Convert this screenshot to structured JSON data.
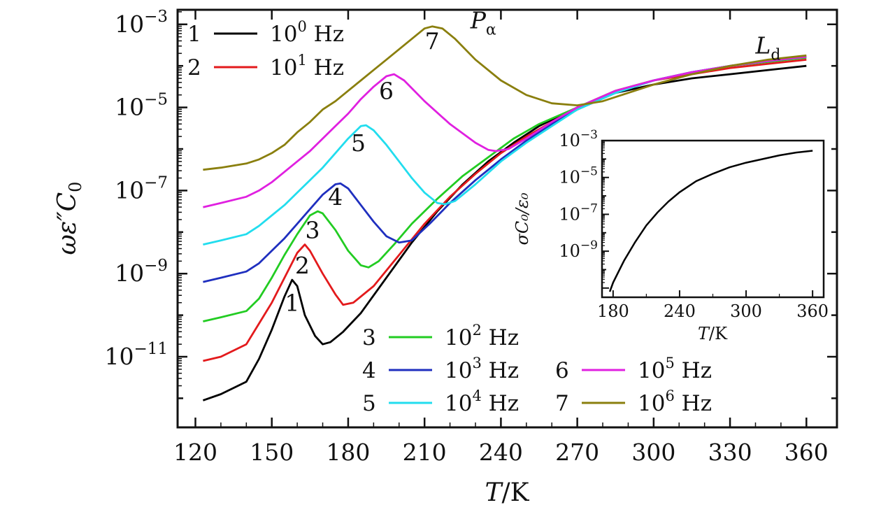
{
  "chart_data": {
    "type": "line",
    "title": "",
    "xlabel": {
      "var": "T",
      "unit": "/K"
    },
    "ylabel": {
      "var": "ωε″",
      "sub": "C",
      "subscript": "0"
    },
    "x_ticks": [
      120,
      150,
      180,
      210,
      240,
      270,
      300,
      330,
      360
    ],
    "xlim": [
      113,
      372
    ],
    "y_log": true,
    "ylim_exp": [
      -12.7,
      -2.65
    ],
    "y_ticks": [
      {
        "base": "10",
        "exp": "−3",
        "value": -3
      },
      {
        "base": "10",
        "exp": "−5",
        "value": -5
      },
      {
        "base": "10",
        "exp": "−7",
        "value": -7
      },
      {
        "base": "10",
        "exp": "−9",
        "value": -9
      },
      {
        "base": "10",
        "exp": "−11",
        "value": -11
      }
    ],
    "series": [
      {
        "id": "1",
        "name": "10^0 Hz",
        "freq_base": "10",
        "freq_exp": "0",
        "unit": "Hz",
        "color": "#000000",
        "points": [
          [
            123,
            -12.05
          ],
          [
            130,
            -11.9
          ],
          [
            140,
            -11.6
          ],
          [
            145,
            -11.05
          ],
          [
            150,
            -10.35
          ],
          [
            155,
            -9.55
          ],
          [
            158,
            -9.15
          ],
          [
            160,
            -9.3
          ],
          [
            163,
            -10.0
          ],
          [
            167,
            -10.5
          ],
          [
            170,
            -10.7
          ],
          [
            173,
            -10.65
          ],
          [
            178,
            -10.4
          ],
          [
            185,
            -9.95
          ],
          [
            195,
            -9.1
          ],
          [
            205,
            -8.25
          ],
          [
            215,
            -7.5
          ],
          [
            225,
            -6.85
          ],
          [
            235,
            -6.3
          ],
          [
            245,
            -5.85
          ],
          [
            255,
            -5.45
          ],
          [
            270,
            -5.0
          ],
          [
            285,
            -4.65
          ],
          [
            300,
            -4.45
          ],
          [
            315,
            -4.3
          ],
          [
            330,
            -4.2
          ],
          [
            345,
            -4.1
          ],
          [
            360,
            -4.0
          ]
        ]
      },
      {
        "id": "2",
        "name": "10^1 Hz",
        "freq_base": "10",
        "freq_exp": "1",
        "unit": "Hz",
        "color": "#e31a1c",
        "points": [
          [
            123,
            -11.1
          ],
          [
            130,
            -11.0
          ],
          [
            140,
            -10.7
          ],
          [
            145,
            -10.2
          ],
          [
            150,
            -9.7
          ],
          [
            155,
            -9.1
          ],
          [
            160,
            -8.5
          ],
          [
            163,
            -8.3
          ],
          [
            165,
            -8.45
          ],
          [
            170,
            -9.0
          ],
          [
            175,
            -9.5
          ],
          [
            178,
            -9.75
          ],
          [
            182,
            -9.7
          ],
          [
            190,
            -9.3
          ],
          [
            200,
            -8.55
          ],
          [
            210,
            -7.8
          ],
          [
            220,
            -7.15
          ],
          [
            230,
            -6.6
          ],
          [
            240,
            -6.1
          ],
          [
            250,
            -5.7
          ],
          [
            260,
            -5.35
          ],
          [
            270,
            -5.0
          ],
          [
            285,
            -4.6
          ],
          [
            300,
            -4.35
          ],
          [
            315,
            -4.2
          ],
          [
            330,
            -4.05
          ],
          [
            345,
            -3.95
          ],
          [
            360,
            -3.85
          ]
        ]
      },
      {
        "id": "3",
        "name": "10^2 Hz",
        "freq_base": "10",
        "freq_exp": "2",
        "unit": "Hz",
        "color": "#22cc22",
        "points": [
          [
            123,
            -10.15
          ],
          [
            130,
            -10.05
          ],
          [
            140,
            -9.9
          ],
          [
            145,
            -9.6
          ],
          [
            150,
            -9.1
          ],
          [
            155,
            -8.55
          ],
          [
            160,
            -8.05
          ],
          [
            165,
            -7.6
          ],
          [
            168,
            -7.5
          ],
          [
            170,
            -7.55
          ],
          [
            175,
            -7.95
          ],
          [
            180,
            -8.45
          ],
          [
            185,
            -8.8
          ],
          [
            188,
            -8.85
          ],
          [
            192,
            -8.7
          ],
          [
            198,
            -8.3
          ],
          [
            205,
            -7.8
          ],
          [
            215,
            -7.2
          ],
          [
            225,
            -6.65
          ],
          [
            235,
            -6.2
          ],
          [
            245,
            -5.75
          ],
          [
            255,
            -5.4
          ],
          [
            270,
            -5.0
          ],
          [
            285,
            -4.6
          ],
          [
            300,
            -4.35
          ],
          [
            315,
            -4.15
          ],
          [
            330,
            -4.0
          ],
          [
            345,
            -3.9
          ],
          [
            360,
            -3.8
          ]
        ]
      },
      {
        "id": "4",
        "name": "10^3 Hz",
        "freq_base": "10",
        "freq_exp": "3",
        "unit": "Hz",
        "color": "#1f2fbf",
        "points": [
          [
            123,
            -9.2
          ],
          [
            130,
            -9.1
          ],
          [
            140,
            -8.95
          ],
          [
            145,
            -8.75
          ],
          [
            150,
            -8.45
          ],
          [
            155,
            -8.15
          ],
          [
            160,
            -7.8
          ],
          [
            165,
            -7.45
          ],
          [
            170,
            -7.1
          ],
          [
            175,
            -6.85
          ],
          [
            177,
            -6.83
          ],
          [
            180,
            -6.95
          ],
          [
            185,
            -7.35
          ],
          [
            190,
            -7.75
          ],
          [
            195,
            -8.1
          ],
          [
            200,
            -8.25
          ],
          [
            205,
            -8.2
          ],
          [
            212,
            -7.8
          ],
          [
            220,
            -7.3
          ],
          [
            230,
            -6.75
          ],
          [
            240,
            -6.25
          ],
          [
            250,
            -5.8
          ],
          [
            260,
            -5.4
          ],
          [
            270,
            -5.05
          ],
          [
            285,
            -4.65
          ],
          [
            300,
            -4.35
          ],
          [
            315,
            -4.15
          ],
          [
            330,
            -4.0
          ],
          [
            345,
            -3.88
          ],
          [
            360,
            -3.78
          ]
        ]
      },
      {
        "id": "5",
        "name": "10^4 Hz",
        "freq_base": "10",
        "freq_exp": "4",
        "unit": "Hz",
        "color": "#22ddee",
        "points": [
          [
            123,
            -8.3
          ],
          [
            130,
            -8.2
          ],
          [
            140,
            -8.05
          ],
          [
            145,
            -7.85
          ],
          [
            150,
            -7.6
          ],
          [
            155,
            -7.35
          ],
          [
            160,
            -7.05
          ],
          [
            165,
            -6.75
          ],
          [
            170,
            -6.45
          ],
          [
            175,
            -6.1
          ],
          [
            180,
            -5.75
          ],
          [
            185,
            -5.45
          ],
          [
            187,
            -5.43
          ],
          [
            190,
            -5.55
          ],
          [
            195,
            -5.9
          ],
          [
            200,
            -6.3
          ],
          [
            205,
            -6.7
          ],
          [
            210,
            -7.05
          ],
          [
            215,
            -7.3
          ],
          [
            218,
            -7.33
          ],
          [
            222,
            -7.25
          ],
          [
            230,
            -6.85
          ],
          [
            240,
            -6.3
          ],
          [
            250,
            -5.85
          ],
          [
            260,
            -5.45
          ],
          [
            270,
            -5.05
          ],
          [
            285,
            -4.65
          ],
          [
            300,
            -4.35
          ],
          [
            315,
            -4.15
          ],
          [
            330,
            -4.0
          ],
          [
            345,
            -3.88
          ],
          [
            360,
            -3.78
          ]
        ]
      },
      {
        "id": "6",
        "name": "10^5 Hz",
        "freq_base": "10",
        "freq_exp": "5",
        "unit": "Hz",
        "color": "#e020e0",
        "points": [
          [
            123,
            -7.4
          ],
          [
            130,
            -7.3
          ],
          [
            140,
            -7.15
          ],
          [
            145,
            -7.0
          ],
          [
            150,
            -6.8
          ],
          [
            155,
            -6.55
          ],
          [
            160,
            -6.3
          ],
          [
            165,
            -6.05
          ],
          [
            170,
            -5.75
          ],
          [
            175,
            -5.45
          ],
          [
            180,
            -5.15
          ],
          [
            185,
            -4.8
          ],
          [
            190,
            -4.5
          ],
          [
            195,
            -4.25
          ],
          [
            198,
            -4.2
          ],
          [
            202,
            -4.35
          ],
          [
            210,
            -4.85
          ],
          [
            220,
            -5.4
          ],
          [
            230,
            -5.85
          ],
          [
            235,
            -6.02
          ],
          [
            238,
            -6.05
          ],
          [
            243,
            -6.0
          ],
          [
            250,
            -5.75
          ],
          [
            260,
            -5.35
          ],
          [
            270,
            -5.0
          ],
          [
            285,
            -4.6
          ],
          [
            300,
            -4.35
          ],
          [
            315,
            -4.15
          ],
          [
            330,
            -4.0
          ],
          [
            345,
            -3.88
          ],
          [
            360,
            -3.78
          ]
        ]
      },
      {
        "id": "7",
        "name": "10^6 Hz",
        "freq_base": "10",
        "freq_exp": "6",
        "unit": "Hz",
        "color": "#8a7f0e",
        "points": [
          [
            123,
            -6.5
          ],
          [
            130,
            -6.45
          ],
          [
            140,
            -6.35
          ],
          [
            145,
            -6.25
          ],
          [
            150,
            -6.1
          ],
          [
            155,
            -5.9
          ],
          [
            160,
            -5.6
          ],
          [
            165,
            -5.35
          ],
          [
            170,
            -5.05
          ],
          [
            175,
            -4.85
          ],
          [
            180,
            -4.6
          ],
          [
            185,
            -4.35
          ],
          [
            190,
            -4.1
          ],
          [
            195,
            -3.85
          ],
          [
            200,
            -3.6
          ],
          [
            205,
            -3.35
          ],
          [
            210,
            -3.1
          ],
          [
            213,
            -3.05
          ],
          [
            217,
            -3.1
          ],
          [
            222,
            -3.35
          ],
          [
            230,
            -3.85
          ],
          [
            240,
            -4.35
          ],
          [
            250,
            -4.7
          ],
          [
            260,
            -4.9
          ],
          [
            270,
            -4.95
          ],
          [
            280,
            -4.85
          ],
          [
            290,
            -4.65
          ],
          [
            300,
            -4.45
          ],
          [
            315,
            -4.2
          ],
          [
            330,
            -4.0
          ],
          [
            345,
            -3.85
          ],
          [
            360,
            -3.75
          ]
        ]
      }
    ],
    "curve_labels": [
      {
        "text": "1",
        "x": 158,
        "y": -9.9
      },
      {
        "text": "2",
        "x": 162,
        "y": -9.0
      },
      {
        "text": "3",
        "x": 166,
        "y": -8.15
      },
      {
        "text": "4",
        "x": 175,
        "y": -7.35
      },
      {
        "text": "5",
        "x": 184,
        "y": -6.05
      },
      {
        "text": "6",
        "x": 195,
        "y": -4.8
      },
      {
        "text": "7",
        "x": 213,
        "y": -3.6
      }
    ],
    "annotations": [
      {
        "name": "peak-p-alpha",
        "main": "P",
        "sub": "α",
        "x": 228,
        "y": -3.1
      },
      {
        "name": "ld",
        "main": "L",
        "sub": "d",
        "x": 340,
        "y": -3.7
      }
    ],
    "inset": {
      "type": "line",
      "xlabel": {
        "var": "T",
        "unit": "/K"
      },
      "ylabel": "σC₀/ε₀",
      "x_ticks": [
        180,
        240,
        300,
        360
      ],
      "xlim": [
        170,
        370
      ],
      "y_log": true,
      "ylim_exp": [
        -11.5,
        -3.0
      ],
      "y_ticks": [
        {
          "base": "10",
          "exp": "−3",
          "value": -3
        },
        {
          "base": "10",
          "exp": "−5",
          "value": -5
        },
        {
          "base": "10",
          "exp": "−7",
          "value": -7
        },
        {
          "base": "10",
          "exp": "−9",
          "value": -9
        }
      ],
      "color": "#000000",
      "points": [
        [
          177,
          -11.2
        ],
        [
          180,
          -10.7
        ],
        [
          185,
          -10.1
        ],
        [
          190,
          -9.5
        ],
        [
          200,
          -8.5
        ],
        [
          210,
          -7.6
        ],
        [
          220,
          -6.9
        ],
        [
          230,
          -6.3
        ],
        [
          240,
          -5.8
        ],
        [
          255,
          -5.2
        ],
        [
          270,
          -4.8
        ],
        [
          285,
          -4.45
        ],
        [
          300,
          -4.2
        ],
        [
          315,
          -4.0
        ],
        [
          330,
          -3.8
        ],
        [
          345,
          -3.65
        ],
        [
          360,
          -3.55
        ]
      ]
    },
    "legend": {
      "top_left": [
        "1",
        "2"
      ],
      "bottom": [
        [
          "3"
        ],
        [
          "4",
          "6"
        ],
        [
          "5",
          "7"
        ]
      ]
    }
  }
}
